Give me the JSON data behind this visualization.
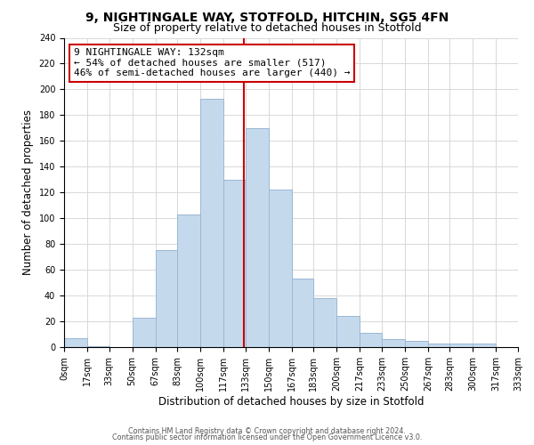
{
  "title": "9, NIGHTINGALE WAY, STOTFOLD, HITCHIN, SG5 4FN",
  "subtitle": "Size of property relative to detached houses in Stotfold",
  "xlabel": "Distribution of detached houses by size in Stotfold",
  "ylabel": "Number of detached properties",
  "bin_edges": [
    0,
    17,
    33,
    50,
    67,
    83,
    100,
    117,
    133,
    150,
    167,
    183,
    200,
    217,
    233,
    250,
    267,
    283,
    300,
    317,
    333
  ],
  "bin_counts": [
    7,
    1,
    0,
    23,
    75,
    103,
    193,
    130,
    170,
    122,
    53,
    38,
    24,
    11,
    6,
    5,
    3,
    3,
    3,
    0
  ],
  "bar_color": "#c5d9ed",
  "bar_edgecolor": "#9ab7d3",
  "grid_color": "#d8d8d8",
  "vline_x": 132,
  "vline_color": "#cc0000",
  "annotation_text": "9 NIGHTINGALE WAY: 132sqm\n← 54% of detached houses are smaller (517)\n46% of semi-detached houses are larger (440) →",
  "annotation_box_edgecolor": "#cc0000",
  "annotation_box_facecolor": "#ffffff",
  "ylim": [
    0,
    240
  ],
  "yticks": [
    0,
    20,
    40,
    60,
    80,
    100,
    120,
    140,
    160,
    180,
    200,
    220,
    240
  ],
  "tick_labels": [
    "0sqm",
    "17sqm",
    "33sqm",
    "50sqm",
    "67sqm",
    "83sqm",
    "100sqm",
    "117sqm",
    "133sqm",
    "150sqm",
    "167sqm",
    "183sqm",
    "200sqm",
    "217sqm",
    "233sqm",
    "250sqm",
    "267sqm",
    "283sqm",
    "300sqm",
    "317sqm",
    "333sqm"
  ],
  "footer1": "Contains HM Land Registry data © Crown copyright and database right 2024.",
  "footer2": "Contains public sector information licensed under the Open Government Licence v3.0.",
  "title_fontsize": 10,
  "subtitle_fontsize": 9,
  "tick_fontsize": 7,
  "ylabel_fontsize": 8.5,
  "xlabel_fontsize": 8.5,
  "annot_fontsize": 8
}
